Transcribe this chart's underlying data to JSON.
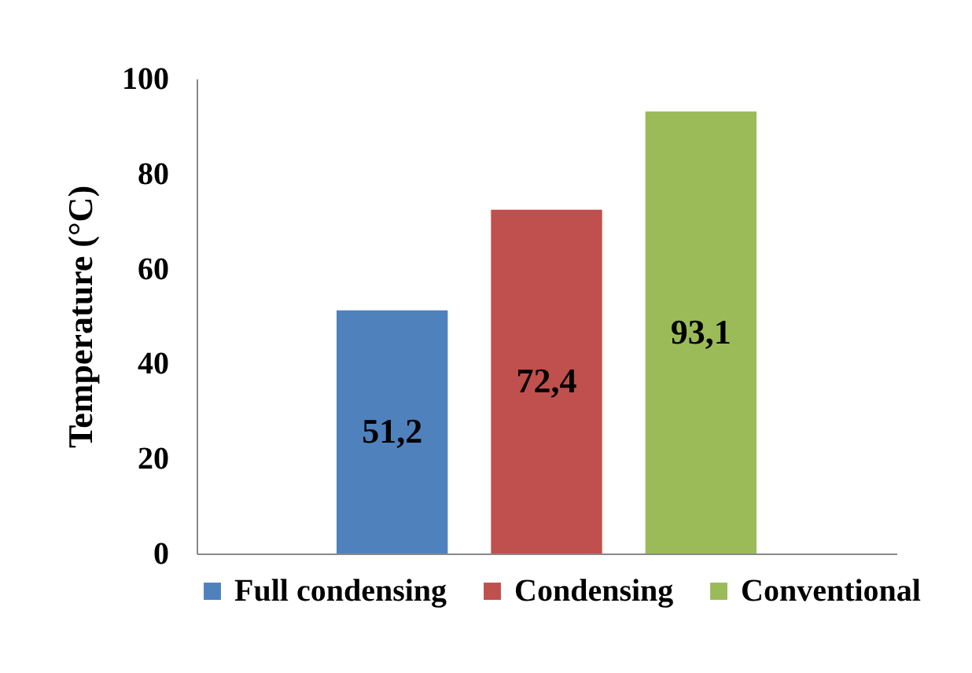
{
  "chart_data": {
    "type": "bar",
    "ylabel": "Temperature (°C)",
    "categories": [
      null
    ],
    "series": [
      {
        "name": "Full condensing",
        "color": "#4f81bd",
        "values": [
          51.2
        ],
        "value_labels": [
          "51,2"
        ]
      },
      {
        "name": "Condensing",
        "color": "#c0504d",
        "values": [
          72.4
        ],
        "value_labels": [
          "72,4"
        ]
      },
      {
        "name": "Conventional",
        "color": "#9bbb59",
        "values": [
          93.1
        ],
        "value_labels": [
          "93,1"
        ]
      }
    ],
    "ylim": [
      0,
      100
    ],
    "yticks": [
      0,
      20,
      40,
      60,
      80,
      100
    ],
    "grid": false,
    "legend": "bottom"
  }
}
